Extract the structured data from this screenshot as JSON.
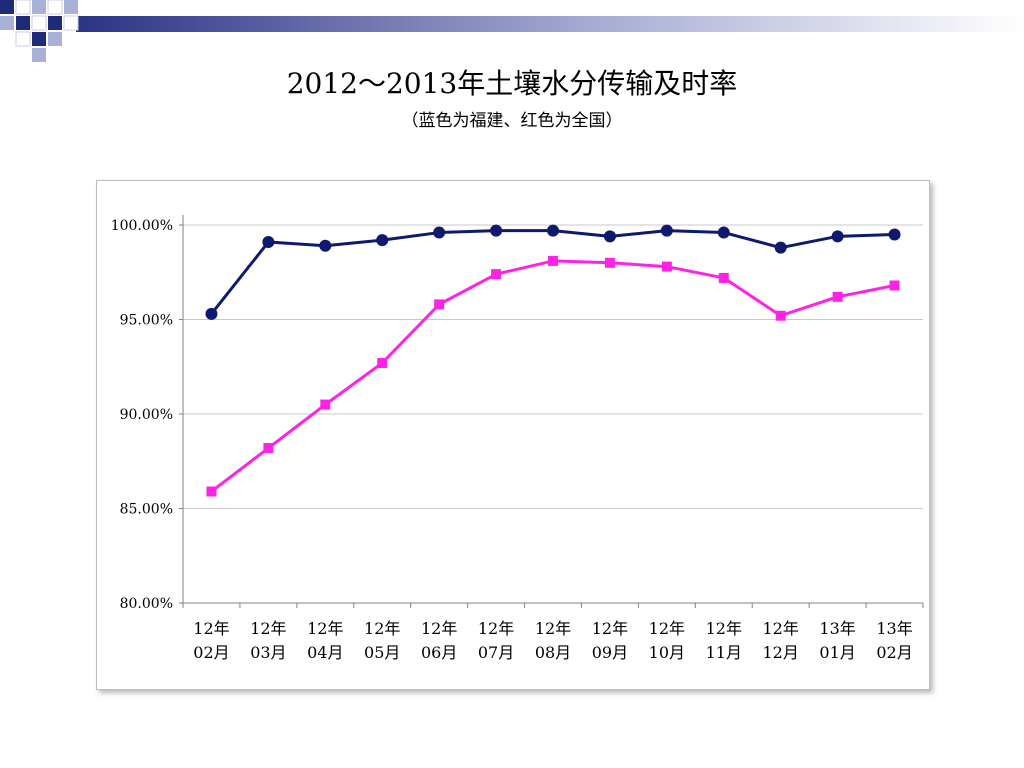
{
  "header": {
    "title": "2012～2013年土壤水分传输及时率",
    "subtitle": "（蓝色为福建、红色为全国）"
  },
  "theme": {
    "deco_navy": "#1f2a7a",
    "deco_light": "#a9b0d6"
  },
  "chart_data": {
    "type": "line",
    "title": "",
    "xlabel": "",
    "ylabel": "",
    "categories": [
      [
        "12年",
        "02月"
      ],
      [
        "12年",
        "03月"
      ],
      [
        "12年",
        "04月"
      ],
      [
        "12年",
        "05月"
      ],
      [
        "12年",
        "06月"
      ],
      [
        "12年",
        "07月"
      ],
      [
        "12年",
        "08月"
      ],
      [
        "12年",
        "09月"
      ],
      [
        "12年",
        "10月"
      ],
      [
        "12年",
        "11月"
      ],
      [
        "12年",
        "12月"
      ],
      [
        "13年",
        "01月"
      ],
      [
        "13年",
        "02月"
      ]
    ],
    "ylim": [
      80,
      100
    ],
    "yticks": [
      80,
      85,
      90,
      95,
      100
    ],
    "ytick_labels": [
      "80.00%",
      "85.00%",
      "90.00%",
      "95.00%",
      "100.00%"
    ],
    "grid": true,
    "legend": "none",
    "series": [
      {
        "color": "#0d1a6e",
        "marker": "circle",
        "values": [
          95.3,
          99.1,
          98.9,
          99.2,
          99.6,
          99.7,
          99.7,
          99.4,
          99.7,
          99.6,
          98.8,
          99.4,
          99.5
        ]
      },
      {
        "color": "#ff22e6",
        "marker": "square",
        "values": [
          85.9,
          88.2,
          90.5,
          92.7,
          95.8,
          97.4,
          98.1,
          98.0,
          97.8,
          97.2,
          95.2,
          96.2,
          96.8
        ]
      }
    ]
  }
}
